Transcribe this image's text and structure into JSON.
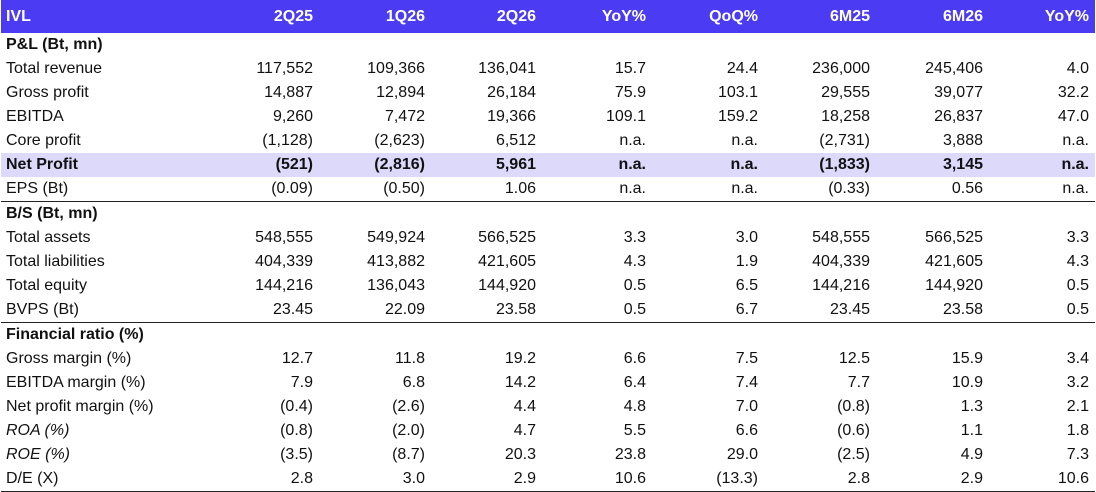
{
  "header": [
    "IVL",
    "2Q25",
    "1Q26",
    "2Q26",
    "YoY%",
    "QoQ%",
    "6M25",
    "6M26",
    "YoY%"
  ],
  "sections": [
    {
      "title": "P&L (Bt, mn)",
      "rows": [
        {
          "label": "Total revenue",
          "values": [
            "117,552",
            "109,366",
            "136,041",
            "15.7",
            "24.4",
            "236,000",
            "245,406",
            "4.0"
          ]
        },
        {
          "label": "Gross profit",
          "values": [
            "14,887",
            "12,894",
            "26,184",
            "75.9",
            "103.1",
            "29,555",
            "39,077",
            "32.2"
          ]
        },
        {
          "label": "EBITDA",
          "values": [
            "9,260",
            "7,472",
            "19,366",
            "109.1",
            "159.2",
            "18,258",
            "26,837",
            "47.0"
          ]
        },
        {
          "label": "Core profit",
          "values": [
            "(1,128)",
            "(2,623)",
            "6,512",
            "n.a.",
            "n.a.",
            "(2,731)",
            "3,888",
            "n.a."
          ]
        },
        {
          "label": "Net Profit",
          "values": [
            "(521)",
            "(2,816)",
            "5,961",
            "n.a.",
            "n.a.",
            "(1,833)",
            "3,145",
            "n.a."
          ],
          "highlight": true
        },
        {
          "label": "EPS (Bt)",
          "values": [
            "(0.09)",
            "(0.50)",
            "1.06",
            "n.a.",
            "n.a.",
            "(0.33)",
            "0.56",
            "n.a."
          ]
        }
      ]
    },
    {
      "title": "B/S (Bt, mn)",
      "rows": [
        {
          "label": "Total assets",
          "values": [
            "548,555",
            "549,924",
            "566,525",
            "3.3",
            "3.0",
            "548,555",
            "566,525",
            "3.3"
          ]
        },
        {
          "label": "Total liabilities",
          "values": [
            "404,339",
            "413,882",
            "421,605",
            "4.3",
            "1.9",
            "404,339",
            "421,605",
            "4.3"
          ]
        },
        {
          "label": "Total equity",
          "values": [
            "144,216",
            "136,043",
            "144,920",
            "0.5",
            "6.5",
            "144,216",
            "144,920",
            "0.5"
          ]
        },
        {
          "label": "BVPS (Bt)",
          "values": [
            "23.45",
            "22.09",
            "23.58",
            "0.5",
            "6.7",
            "23.45",
            "23.58",
            "0.5"
          ]
        }
      ]
    },
    {
      "title": "Financial ratio (%)",
      "rows": [
        {
          "label": "Gross margin (%)",
          "values": [
            "12.7",
            "11.8",
            "19.2",
            "6.6",
            "7.5",
            "12.5",
            "15.9",
            "3.4"
          ]
        },
        {
          "label": "EBITDA margin (%)",
          "values": [
            "7.9",
            "6.8",
            "14.2",
            "6.4",
            "7.4",
            "7.7",
            "10.9",
            "3.2"
          ]
        },
        {
          "label": "Net profit margin (%)",
          "values": [
            "(0.4)",
            "(2.6)",
            "4.4",
            "4.8",
            "7.0",
            "(0.8)",
            "1.3",
            "2.1"
          ]
        },
        {
          "label": "ROA (%)",
          "values": [
            "(0.8)",
            "(2.0)",
            "4.7",
            "5.5",
            "6.6",
            "(0.6)",
            "1.1",
            "1.8"
          ],
          "italic": true
        },
        {
          "label": "ROE (%)",
          "values": [
            "(3.5)",
            "(8.7)",
            "20.3",
            "23.8",
            "29.0",
            "(2.5)",
            "4.9",
            "7.3"
          ],
          "italic": true
        },
        {
          "label": "D/E (X)",
          "values": [
            "2.8",
            "3.0",
            "2.9",
            "10.6",
            "(13.3)",
            "2.8",
            "2.9",
            "10.6"
          ]
        }
      ]
    }
  ],
  "colors": {
    "header_bg": "#4b3cf3",
    "highlight_bg": "#dcd9fb"
  }
}
